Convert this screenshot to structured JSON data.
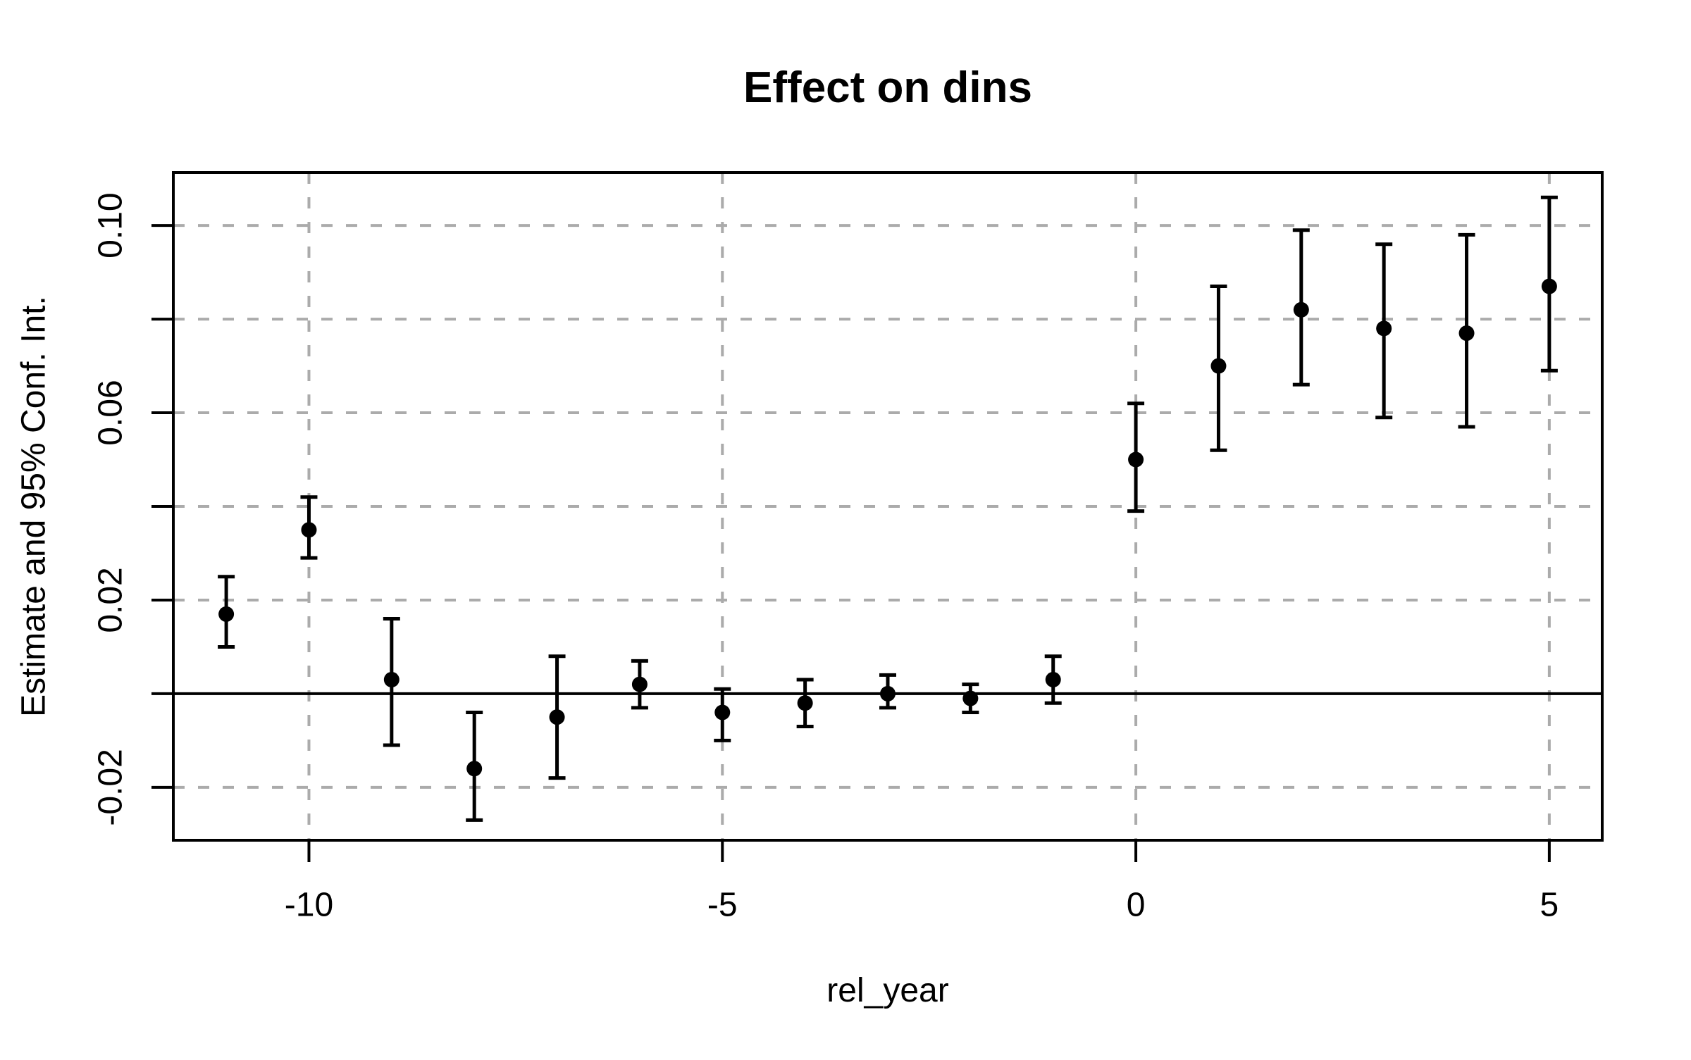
{
  "chart_data": {
    "type": "scatter",
    "subtype": "event-study-errorbar",
    "title": "Effect on dins",
    "xlabel": "rel_year",
    "ylabel": "Estimate and 95% Conf. Int.",
    "x": [
      -11,
      -10,
      -9,
      -8,
      -7,
      -6,
      -5,
      -4,
      -3,
      -2,
      -1,
      0,
      1,
      2,
      3,
      4,
      5
    ],
    "estimate": [
      0.017,
      0.035,
      0.003,
      -0.016,
      -0.005,
      0.002,
      -0.004,
      -0.002,
      0.0,
      -0.001,
      0.003,
      0.05,
      0.07,
      0.082,
      0.078,
      0.077,
      0.087
    ],
    "ci_lower": [
      0.01,
      0.029,
      -0.011,
      -0.027,
      -0.018,
      -0.003,
      -0.01,
      -0.007,
      -0.003,
      -0.004,
      -0.002,
      0.039,
      0.052,
      0.066,
      0.059,
      0.057,
      0.069
    ],
    "ci_upper": [
      0.025,
      0.042,
      0.016,
      -0.004,
      0.008,
      0.007,
      0.001,
      0.003,
      0.004,
      0.002,
      0.008,
      0.062,
      0.087,
      0.099,
      0.096,
      0.098,
      0.106
    ],
    "xlim": [
      -11.64,
      5.64
    ],
    "ylim": [
      -0.0313,
      0.1113
    ],
    "x_ticks": [
      -10,
      -5,
      0,
      5
    ],
    "x_tick_labels": [
      "-10",
      "-5",
      "0",
      "5"
    ],
    "y_ticks": [
      -0.02,
      0,
      0.02,
      0.04,
      0.06,
      0.08,
      0.1
    ],
    "y_labeled_ticks": [
      -0.02,
      0.02,
      0.06,
      0.1
    ],
    "y_tick_labels": [
      "-0.02",
      "0.02",
      "0.06",
      "0.10"
    ],
    "grid": true,
    "grid_style": "dashed",
    "zero_line": true,
    "legend": "none",
    "colors": {
      "points": "#000000",
      "error_bars": "#000000",
      "frame": "#000000",
      "zero_line": "#000000",
      "grid": "#ababab",
      "background": "#ffffff"
    }
  }
}
